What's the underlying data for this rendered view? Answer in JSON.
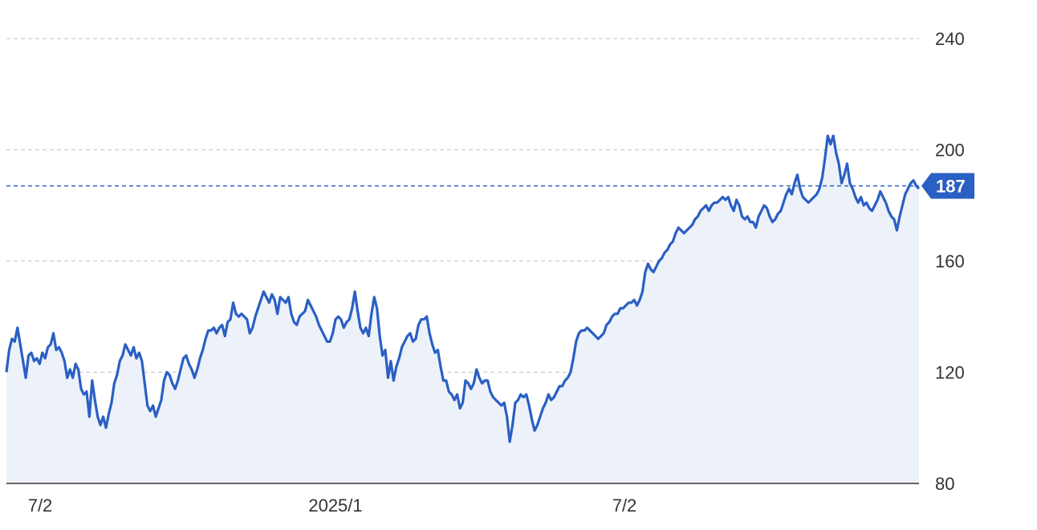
{
  "chart_data": {
    "type": "area",
    "title": "",
    "xlabel": "",
    "ylabel": "",
    "x_ticks": [
      "7/2",
      "2025/1",
      "7/2"
    ],
    "y_ticks": [
      80,
      120,
      160,
      200,
      240
    ],
    "ylim": [
      80,
      240
    ],
    "grid": true,
    "current_value": 187,
    "colors": {
      "line": "#2a5fc4",
      "fill": "#edf2fa",
      "grid": "#cccccc",
      "ref_line": "#2a5fc4",
      "label_bg": "#2a5fc4"
    },
    "series": [
      {
        "values": [
          120,
          128,
          132,
          131,
          136,
          130,
          124,
          118,
          126,
          127,
          124,
          125,
          123,
          127,
          125,
          129,
          130,
          134,
          128,
          129,
          127,
          124,
          118,
          121,
          118,
          123,
          121,
          114,
          112,
          113,
          104,
          117,
          110,
          104,
          101,
          104,
          100,
          105,
          109,
          116,
          119,
          124,
          126,
          130,
          128,
          126,
          129,
          125,
          127,
          124,
          116,
          108,
          106,
          108,
          104,
          107,
          110,
          117,
          120,
          119,
          116,
          114,
          117,
          121,
          125,
          126,
          123,
          121,
          118,
          121,
          125,
          128,
          132,
          135,
          135,
          136,
          134,
          136,
          137,
          133,
          138,
          139,
          145,
          141,
          140,
          141,
          140,
          139,
          134,
          136,
          140,
          143,
          146,
          149,
          147,
          145,
          148,
          146,
          141,
          147,
          146,
          145,
          147,
          141,
          138,
          137,
          140,
          141,
          142,
          146,
          144,
          142,
          140,
          137,
          135,
          133,
          131,
          131,
          134,
          139,
          140,
          139,
          136,
          138,
          139,
          143,
          149,
          142,
          136,
          134,
          136,
          133,
          141,
          147,
          143,
          133,
          126,
          128,
          118,
          124,
          117,
          122,
          125,
          129,
          131,
          133,
          134,
          131,
          132,
          137,
          139,
          139,
          140,
          134,
          130,
          127,
          128,
          122,
          117,
          117,
          113,
          112,
          110,
          112,
          107,
          109,
          117,
          116,
          114,
          116,
          121,
          118,
          116,
          117,
          117,
          113,
          111,
          110,
          109,
          108,
          109,
          104,
          95,
          101,
          109,
          110,
          112,
          111,
          112,
          108,
          103,
          99,
          101,
          104,
          107,
          109,
          112,
          110,
          111,
          113,
          115,
          115,
          117,
          118,
          120,
          125,
          131,
          134,
          135,
          135,
          136,
          135,
          134,
          133,
          132,
          133,
          134,
          137,
          138,
          140,
          141,
          141,
          143,
          143,
          144,
          145,
          145,
          146,
          144,
          146,
          149,
          156,
          159,
          157,
          156,
          158,
          160,
          161,
          163,
          164,
          166,
          167,
          170,
          172,
          171,
          170,
          171,
          172,
          173,
          175,
          176,
          178,
          179,
          180,
          178,
          180,
          181,
          181,
          182,
          183,
          182,
          183,
          180,
          178,
          182,
          180,
          176,
          175,
          176,
          174,
          174,
          172,
          176,
          178,
          180,
          179,
          176,
          174,
          175,
          177,
          178,
          181,
          184,
          186,
          184,
          188,
          191,
          186,
          183,
          182,
          181,
          182,
          183,
          184,
          186,
          190,
          197,
          205,
          202,
          205,
          199,
          195,
          188,
          191,
          195,
          188,
          186,
          183,
          181,
          183,
          180,
          181,
          179,
          178,
          180,
          182,
          185,
          183,
          181,
          178,
          176,
          175,
          171,
          176,
          180,
          184,
          186,
          188,
          189,
          187,
          186
        ]
      }
    ]
  }
}
